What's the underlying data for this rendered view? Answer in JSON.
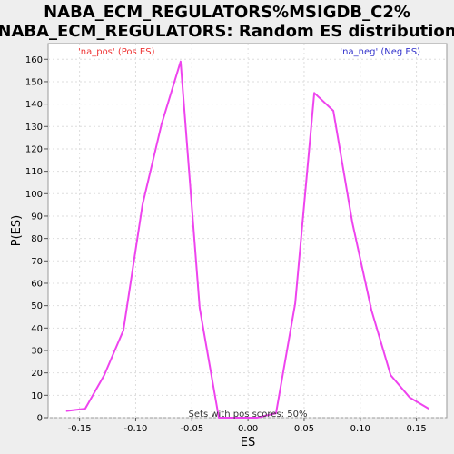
{
  "chart_data": {
    "type": "line",
    "title_lines": [
      "NABA_ECM_REGULATORS%MSIGDB_C2%",
      "NABA_ECM_REGULATORS: Random ES distribution"
    ],
    "xlabel": "ES",
    "ylabel": "P(ES)",
    "xlim": [
      -0.178,
      0.177
    ],
    "ylim": [
      0,
      167
    ],
    "x_ticks": [
      -0.15,
      -0.1,
      -0.05,
      0.0,
      0.05,
      0.1,
      0.15
    ],
    "x_tick_labels": [
      "-0.15",
      "-0.10",
      "-0.05",
      "0.00",
      "0.05",
      "0.10",
      "0.15"
    ],
    "y_ticks": [
      0,
      10,
      20,
      30,
      40,
      50,
      60,
      70,
      80,
      90,
      100,
      110,
      120,
      130,
      140,
      150,
      160
    ],
    "y_tick_labels": [
      "0",
      "10",
      "20",
      "30",
      "40",
      "50",
      "60",
      "70",
      "80",
      "90",
      "100",
      "110",
      "120",
      "130",
      "140",
      "150",
      "160"
    ],
    "grid": true,
    "series": [
      {
        "color": "#ee44ee",
        "x": [
          -0.162,
          -0.145,
          -0.128,
          -0.111,
          -0.094,
          -0.077,
          -0.06,
          -0.043,
          -0.026,
          -0.009,
          0.008,
          0.025,
          0.042,
          0.059,
          0.076,
          0.093,
          0.11,
          0.127,
          0.144,
          0.161
        ],
        "y": [
          3,
          4,
          19,
          39,
          95,
          131,
          159,
          49,
          0,
          0,
          0,
          2,
          51,
          145,
          137,
          87,
          48,
          19,
          9,
          4
        ]
      }
    ],
    "legend": {
      "pos_label": "'na_pos' (Pos ES)",
      "neg_label": "'na_neg' (Neg ES)",
      "pos_color": "#ee3333",
      "neg_color": "#3333cc"
    },
    "annotation": "Sets with pos scores: 50%"
  }
}
